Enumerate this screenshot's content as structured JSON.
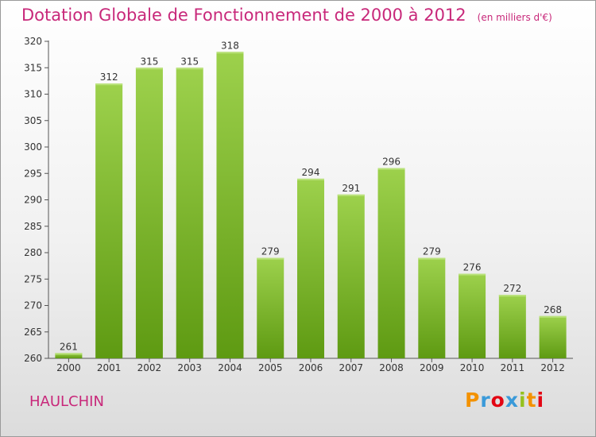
{
  "header": {
    "title": "Dotation Globale de Fonctionnement de 2000 à 2012",
    "unit": "(en milliers d'€)"
  },
  "commune": "HAULCHIN",
  "logo": {
    "p": "P",
    "r": "r",
    "o": "o",
    "x": "x",
    "i1": "i",
    "t": "t",
    "i2": "i"
  },
  "colors": {
    "bar_top": "#9dd14c",
    "bar_bottom": "#5e9a12",
    "title": "#c8287a"
  },
  "chart_data": {
    "type": "bar",
    "title": "Dotation Globale de Fonctionnement de 2000 à 2012",
    "subtitle": "(en milliers d'€)",
    "xlabel": "",
    "ylabel": "",
    "categories": [
      "2000",
      "2001",
      "2002",
      "2003",
      "2004",
      "2005",
      "2006",
      "2007",
      "2008",
      "2009",
      "2010",
      "2011",
      "2012"
    ],
    "values": [
      261,
      312,
      315,
      315,
      318,
      279,
      294,
      291,
      296,
      279,
      276,
      272,
      268
    ],
    "ylim": [
      260,
      320
    ],
    "yticks": [
      260,
      265,
      270,
      275,
      280,
      285,
      290,
      295,
      300,
      305,
      310,
      315,
      320
    ],
    "grid": false,
    "legend": "none"
  }
}
